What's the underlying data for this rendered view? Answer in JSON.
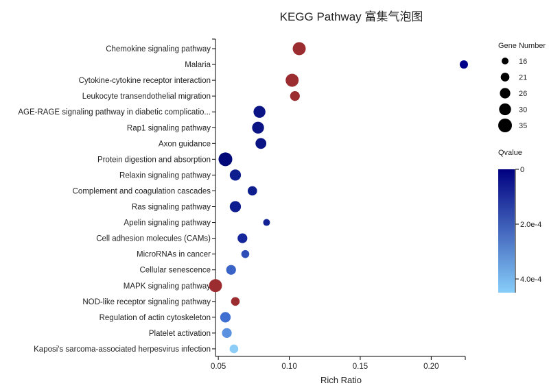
{
  "chart_data": {
    "type": "scatter",
    "title": "KEGG Pathway 富集气泡图",
    "xlabel": "Rich Ratio",
    "ylabel": "",
    "xlim": [
      0.048,
      0.224
    ],
    "xticks": [
      "0.05",
      "0.10",
      "0.15",
      "0.20"
    ],
    "xtick_values": [
      0.05,
      0.1,
      0.15,
      0.2
    ],
    "grid": false,
    "size_legend": {
      "title": "Gene Number",
      "values": [
        16,
        21,
        26,
        30,
        35
      ]
    },
    "color_legend": {
      "title": "Qvalue",
      "ticks": [
        "0",
        "2.0e-4",
        "4.0e-4"
      ],
      "tick_values": [
        0,
        0.0002,
        0.0004
      ],
      "max": 0.00045,
      "colors": [
        "#000080",
        "#87cefa"
      ]
    },
    "points": [
      {
        "pathway": "Chemokine signaling pathway",
        "rich_ratio": 0.107,
        "gene_number": 33,
        "color": "#9b2d30"
      },
      {
        "pathway": "Malaria",
        "rich_ratio": 0.223,
        "gene_number": 20,
        "color": "#00008b"
      },
      {
        "pathway": "Cytokine-cytokine receptor interaction",
        "rich_ratio": 0.102,
        "gene_number": 33,
        "color": "#9b2d30"
      },
      {
        "pathway": "Leukocyte transendothelial migration",
        "rich_ratio": 0.104,
        "gene_number": 24,
        "color": "#9b2d30"
      },
      {
        "pathway": "AGE-RAGE signaling pathway in diabetic complicatio...",
        "rich_ratio": 0.079,
        "gene_number": 30,
        "color": "#0a1485"
      },
      {
        "pathway": "Rap1 signaling pathway",
        "rich_ratio": 0.078,
        "gene_number": 30,
        "color": "#0a1485"
      },
      {
        "pathway": "Axon guidance",
        "rich_ratio": 0.08,
        "gene_number": 27,
        "color": "#0a1485"
      },
      {
        "pathway": "Protein digestion and absorption",
        "rich_ratio": 0.055,
        "gene_number": 35,
        "color": "#00087a"
      },
      {
        "pathway": "Relaxin signaling pathway",
        "rich_ratio": 0.062,
        "gene_number": 28,
        "color": "#0e1e8e"
      },
      {
        "pathway": "Complement and coagulation cascades",
        "rich_ratio": 0.074,
        "gene_number": 23,
        "color": "#0e1e8e"
      },
      {
        "pathway": "Ras signaling pathway",
        "rich_ratio": 0.062,
        "gene_number": 28,
        "color": "#0e1e8e"
      },
      {
        "pathway": "Apelin signaling pathway",
        "rich_ratio": 0.084,
        "gene_number": 16,
        "color": "#122296"
      },
      {
        "pathway": "Cell adhesion molecules (CAMs)",
        "rich_ratio": 0.067,
        "gene_number": 24,
        "color": "#15259a"
      },
      {
        "pathway": "MicroRNAs in cancer",
        "rich_ratio": 0.069,
        "gene_number": 19,
        "color": "#2e4eb8"
      },
      {
        "pathway": "Cellular senescence",
        "rich_ratio": 0.059,
        "gene_number": 24,
        "color": "#3a63c8"
      },
      {
        "pathway": "MAPK signaling pathway",
        "rich_ratio": 0.048,
        "gene_number": 33,
        "color": "#9b2d30"
      },
      {
        "pathway": "NOD-like receptor signaling pathway",
        "rich_ratio": 0.062,
        "gene_number": 21,
        "color": "#9b2d30"
      },
      {
        "pathway": "Regulation of actin cytoskeleton",
        "rich_ratio": 0.055,
        "gene_number": 26,
        "color": "#3f6fd0"
      },
      {
        "pathway": "Platelet activation",
        "rich_ratio": 0.056,
        "gene_number": 24,
        "color": "#5a90e0"
      },
      {
        "pathway": "Kaposi's sarcoma-associated herpesvirus infection",
        "rich_ratio": 0.061,
        "gene_number": 21,
        "color": "#8ccdf7"
      }
    ]
  }
}
